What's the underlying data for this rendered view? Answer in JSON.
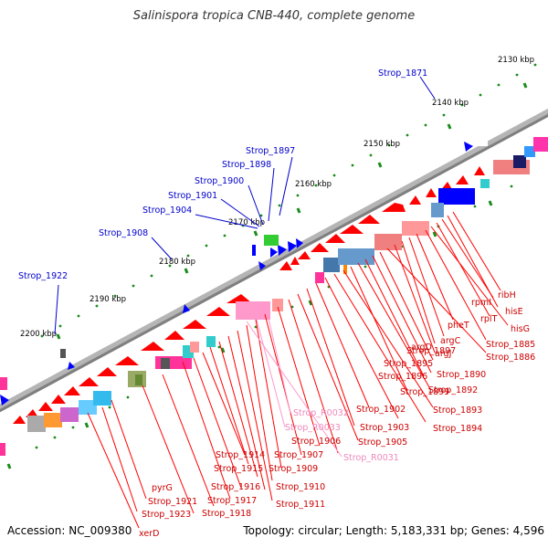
{
  "header": {
    "title": "Salinispora tropica CNB-440, complete genome"
  },
  "footer": {
    "accession": "Accession: NC_009380",
    "topology": "Topology: circular; Length: 5,183,331 bp; Genes: 4,596"
  },
  "colors": {
    "backbone": "#8c8c8c",
    "forward_gene": "#ff0000",
    "reverse_gene": "#0000ff",
    "tick": "#1a8c1a",
    "label_blue": "#0000cc",
    "label_red": "#cc0000",
    "label_pink": "#ee88bb"
  },
  "scale_labels": [
    "2130 kbp",
    "2140 kbp",
    "2150 kbp",
    "2160 kbp",
    "2170 kbp",
    "2180 kbp",
    "2190 kbp",
    "2200 kbp"
  ],
  "upper_gene_labels": [
    "Strop_1871",
    "Strop_1897",
    "Strop_1898",
    "Strop_1900",
    "Strop_1901",
    "Strop_1904",
    "Strop_1908",
    "Strop_1922"
  ],
  "lower_gene_labels": [
    {
      "text": "ribH",
      "color": "red"
    },
    {
      "text": "hisE",
      "color": "red"
    },
    {
      "text": "rpmI",
      "color": "red"
    },
    {
      "text": "rplT",
      "color": "red"
    },
    {
      "text": "hisG",
      "color": "red"
    },
    {
      "text": "Strop_1885",
      "color": "red"
    },
    {
      "text": "pheT",
      "color": "red"
    },
    {
      "text": "argC",
      "color": "red"
    },
    {
      "text": "argD",
      "color": "red"
    },
    {
      "text": "argJ",
      "color": "red"
    },
    {
      "text": "Strop_1886",
      "color": "red"
    },
    {
      "text": "Strop_1895",
      "color": "red"
    },
    {
      "text": "Strop_1897",
      "color": "red"
    },
    {
      "text": "Strop_1896",
      "color": "red"
    },
    {
      "text": "Strop_1890",
      "color": "red"
    },
    {
      "text": "Strop_1899",
      "color": "red"
    },
    {
      "text": "Strop_1892",
      "color": "red"
    },
    {
      "text": "Strop_1893",
      "color": "red"
    },
    {
      "text": "Strop_R0032",
      "color": "pink"
    },
    {
      "text": "Strop_1902",
      "color": "red"
    },
    {
      "text": "Strop_R0033",
      "color": "pink"
    },
    {
      "text": "Strop_1903",
      "color": "red"
    },
    {
      "text": "Strop_1894",
      "color": "red"
    },
    {
      "text": "Strop_1905",
      "color": "red"
    },
    {
      "text": "Strop_1906",
      "color": "red"
    },
    {
      "text": "Strop_R0031",
      "color": "pink"
    },
    {
      "text": "Strop_1914",
      "color": "red"
    },
    {
      "text": "Strop_1907",
      "color": "red"
    },
    {
      "text": "Strop_1915",
      "color": "red"
    },
    {
      "text": "Strop_1909",
      "color": "red"
    },
    {
      "text": "Strop_1916",
      "color": "red"
    },
    {
      "text": "Strop_1910",
      "color": "red"
    },
    {
      "text": "pyrG",
      "color": "red"
    },
    {
      "text": "Strop_1917",
      "color": "red"
    },
    {
      "text": "Strop_1921",
      "color": "red"
    },
    {
      "text": "Strop_1911",
      "color": "red"
    },
    {
      "text": "Strop_1923",
      "color": "red"
    },
    {
      "text": "Strop_1918",
      "color": "red"
    },
    {
      "text": "xerD",
      "color": "red"
    }
  ]
}
